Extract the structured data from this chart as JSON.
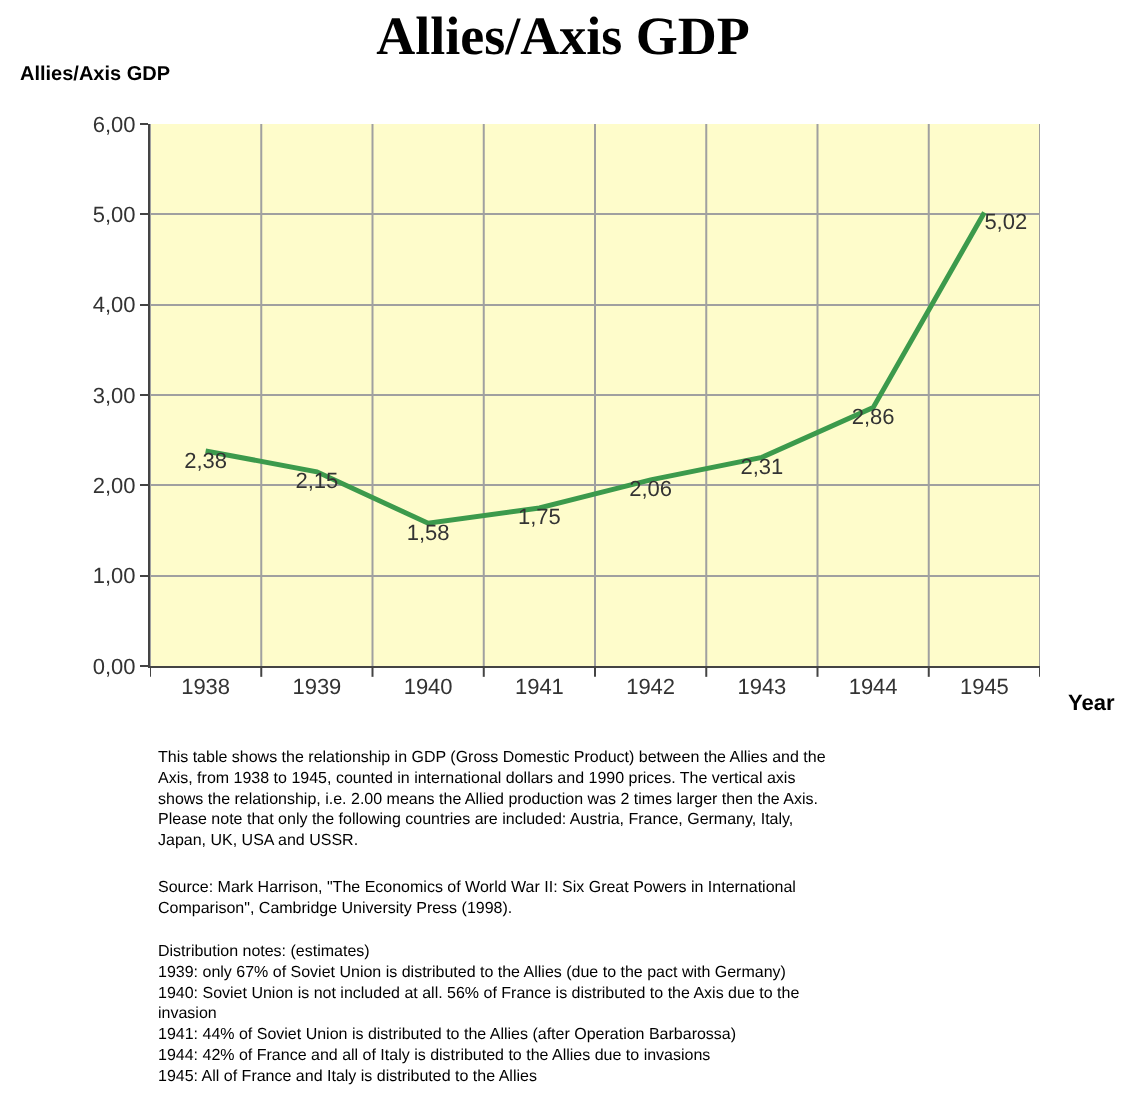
{
  "chart_data": {
    "type": "line",
    "title": "Allies/Axis GDP",
    "ylabel": "Allies/Axis GDP",
    "xlabel": "Year",
    "categories": [
      "1938",
      "1939",
      "1940",
      "1941",
      "1942",
      "1943",
      "1944",
      "1945"
    ],
    "series": [
      {
        "color": "#3c9a4c",
        "values": [
          2.38,
          2.15,
          1.58,
          1.75,
          2.06,
          2.31,
          2.86,
          5.02
        ],
        "value_labels": [
          "2,38",
          "2,15",
          "1,58",
          "1,75",
          "2,06",
          "2,31",
          "2,86",
          "5,02"
        ]
      }
    ],
    "ylim": [
      0,
      6
    ],
    "yticks": [
      {
        "value": 0,
        "label": "0,00"
      },
      {
        "value": 1,
        "label": "1,00"
      },
      {
        "value": 2,
        "label": "2,00"
      },
      {
        "value": 3,
        "label": "3,00"
      },
      {
        "value": 4,
        "label": "4,00"
      },
      {
        "value": 5,
        "label": "5,00"
      },
      {
        "value": 6,
        "label": "6,00"
      }
    ],
    "grid": true,
    "legend": false,
    "marker": "none",
    "line_style": "solid",
    "annotations": [
      "This table shows the relationship in GDP (Gross Domestic Product) between the Allies and the Axis, from 1938 to 1945, counted in international dollars and 1990 prices. The vertical axis shows the relationship, i.e. 2.00 means the Allied production was 2 times larger then the Axis. Please note that only the following countries are included: Austria, France, Germany, Italy, Japan, UK, USA and USSR.",
      "Source: Mark Harrison, \"The Economics of World War II: Six Great Powers in International Comparison\", Cambridge University Press (1998).",
      "Distribution notes: (estimates)\n1939: only 67% of Soviet Union is distributed to the Allies (due to the pact with Germany)\n1940: Soviet Union is not included at all. 56% of France is distributed to the Axis due to the invasion\n1941: 44% of Soviet Union is distributed to the Allies (after Operation Barbarossa)\n1944: 42% of France and all of Italy is distributed to the Allies due to invasions\n1945: All of France and Italy is distributed to the Allies"
    ]
  }
}
